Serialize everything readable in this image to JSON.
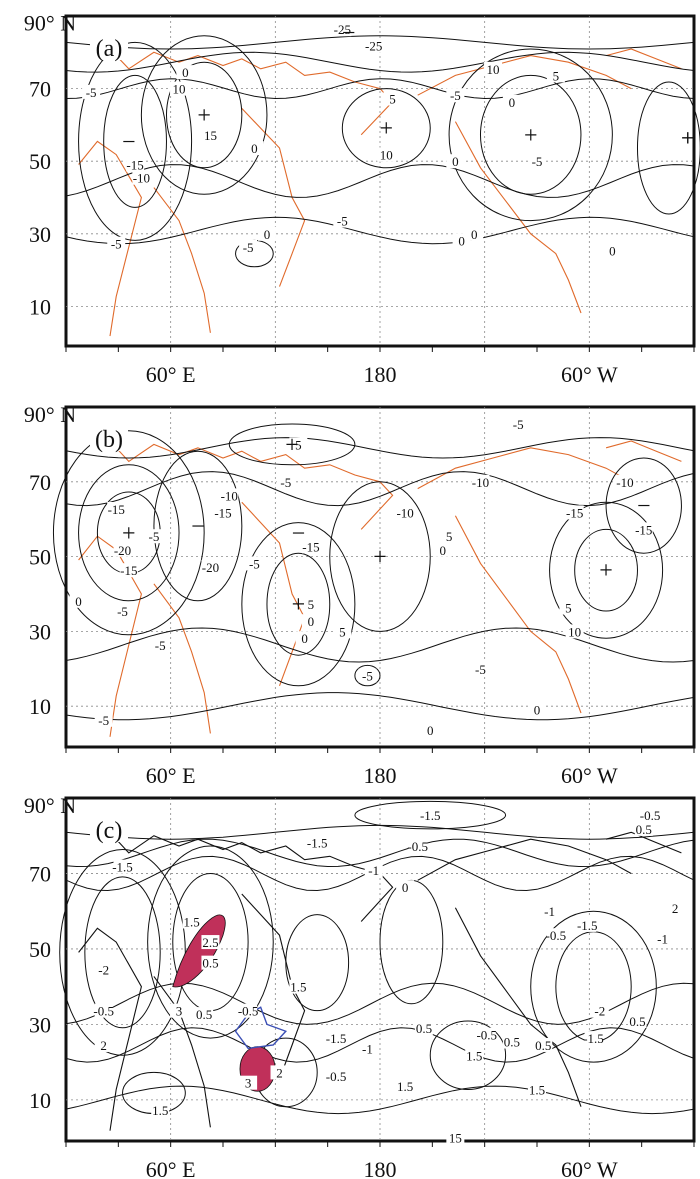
{
  "colors": {
    "frame": "#111111",
    "contour": "#111111",
    "coast": "#e06a2b",
    "grid": "#8a8a8a",
    "shade": "#c0305a",
    "plateau": "#3b4fb5"
  },
  "panels": [
    {
      "label": "(a)",
      "lat_ticks": [
        "90° N",
        "70",
        "50",
        "30",
        "10"
      ],
      "lon_ticks": [
        "60° E",
        "180",
        "60° W"
      ],
      "contour_labels": [
        "-25",
        "-25",
        "-5",
        "0",
        "10",
        "15",
        "-15",
        "-10",
        "0",
        "-5",
        "0",
        "0",
        "-5",
        "10",
        "-5",
        "0",
        "-5",
        "0",
        "-5",
        "5",
        "5",
        "10",
        "0",
        "0"
      ],
      "centers": [
        "+",
        "+",
        "+",
        "+",
        "+",
        "−",
        "−"
      ]
    },
    {
      "label": "(b)",
      "lat_ticks": [
        "90° N",
        "70",
        "50",
        "30",
        "10"
      ],
      "lon_ticks": [
        "60° E",
        "180",
        "60° W"
      ],
      "contour_labels": [
        "-5",
        "5",
        "-5",
        "-10",
        "-15",
        "-20",
        "-15",
        "0",
        "-5",
        "-10",
        "-15",
        "-20",
        "-5",
        "-15",
        "5",
        "0",
        "-10",
        "5",
        "0",
        "5",
        "0",
        "-5",
        "-5",
        "0",
        "0",
        "-5",
        "10",
        "-10",
        "-15",
        "-15",
        "-5",
        "-5",
        "5"
      ],
      "centers": [
        "+",
        "+",
        "+",
        "+",
        "+",
        "−",
        "−",
        "−"
      ]
    },
    {
      "label": "(c)",
      "lat_ticks": [
        "90° N",
        "70",
        "50",
        "30",
        "10"
      ],
      "lon_ticks": [
        "60° E",
        "180",
        "60° W"
      ],
      "contour_labels": [
        "-1.5",
        "-0.5",
        "0.5",
        "-1.5",
        "-0.5",
        "-1",
        "0",
        "-1.5",
        "1.5",
        "2.5",
        "0.5",
        "-2",
        "-0.5",
        "3",
        "2",
        "1.5",
        "0.5",
        "-0.5",
        "1.5",
        "3",
        "2",
        "-1.5",
        "-0.5",
        "-1",
        "0.5",
        "-0.5",
        "0.5",
        "1.5",
        "-1",
        "-0.5",
        "-1.5",
        "-2",
        "-1.5",
        "2",
        "-1",
        "0.5",
        "1.5",
        "1.5",
        "0.5",
        "15"
      ]
    }
  ]
}
